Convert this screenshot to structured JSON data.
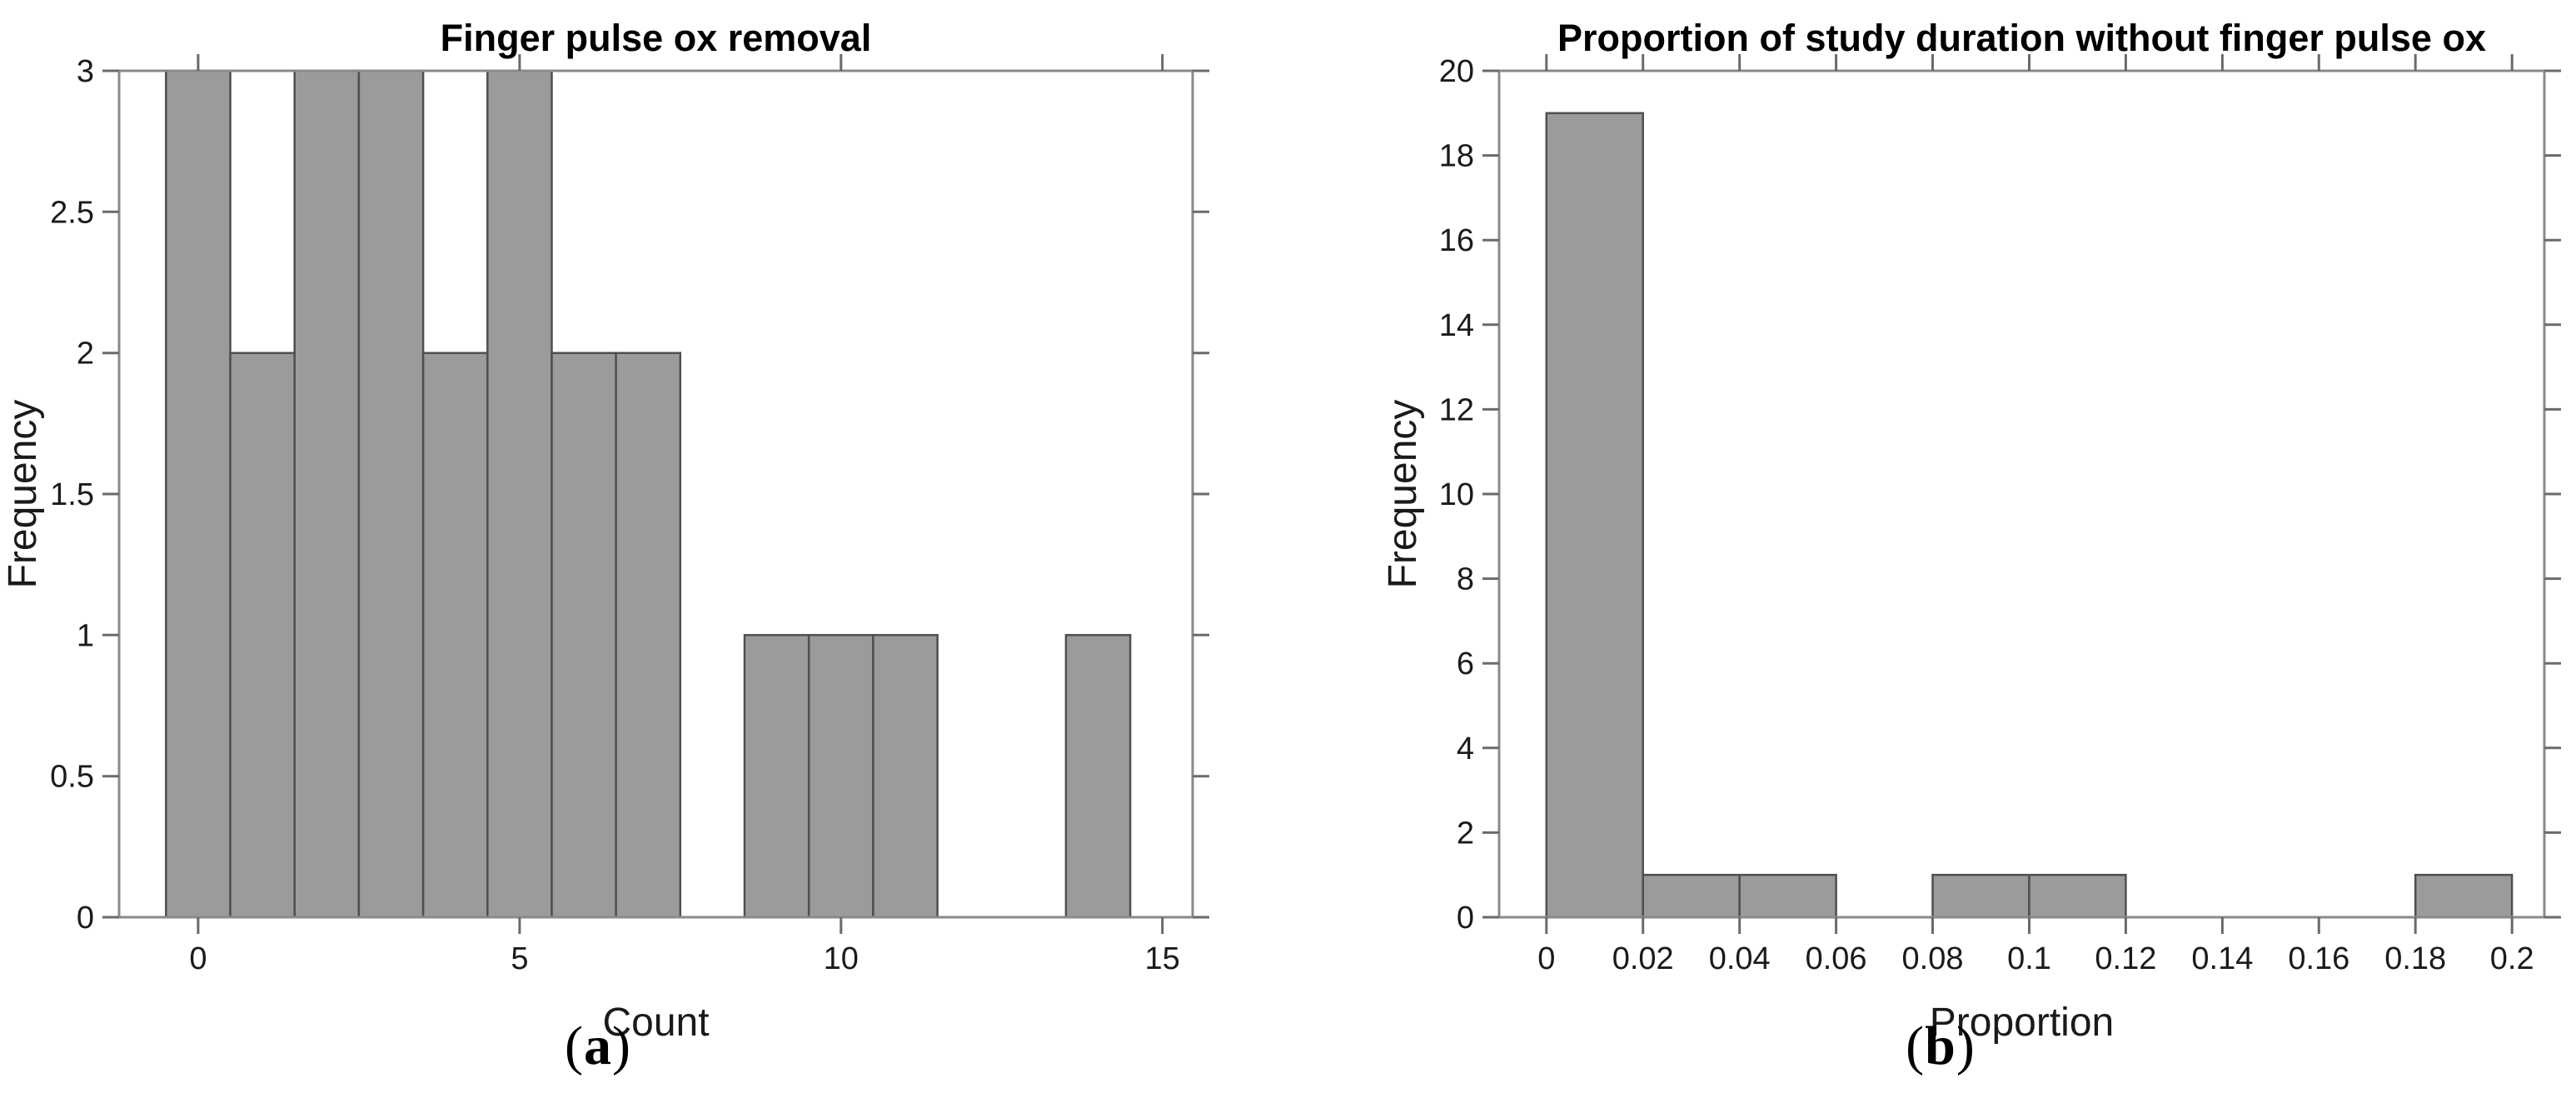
{
  "figure": {
    "background": "#ffffff",
    "panels": [
      {
        "label_open": "(",
        "label_letter": "a",
        "label_close": ")"
      },
      {
        "label_open": "(",
        "label_letter": "b",
        "label_close": ")"
      }
    ]
  },
  "chart_data": [
    {
      "type": "bar",
      "subtype": "histogram",
      "title": "Finger pulse ox removal",
      "xlabel": "Count",
      "ylabel": "Frequency",
      "bin_start": -0.5,
      "bin_width": 1,
      "values": [
        3,
        2,
        3,
        3,
        2,
        3,
        2,
        2,
        0,
        1,
        1,
        1,
        0,
        0,
        1
      ],
      "bin_centers": [
        0,
        1,
        2,
        3,
        4,
        5,
        6,
        7,
        8,
        9,
        10,
        11,
        12,
        13,
        14
      ],
      "xlim": [
        -1.23,
        15.47
      ],
      "ylim": [
        0,
        3
      ],
      "xticks": [
        0,
        5,
        10,
        15
      ],
      "xtick_labels": [
        "0",
        "5",
        "10",
        "15"
      ],
      "yticks": [
        0,
        0.5,
        1,
        1.5,
        2,
        2.5,
        3
      ],
      "ytick_labels": [
        "0",
        "0.5",
        "1",
        "1.5",
        "2",
        "2.5",
        "3"
      ],
      "grid": false,
      "legend": false,
      "box": true,
      "tick_direction": "out",
      "bar_fill": "#9b9b9b",
      "bar_edge": "#4f4f4f",
      "axis_color": "#8a8a8a",
      "tick_color": "#6a6a6a",
      "text_color": "#1a1a1a",
      "title_color": "#000000"
    },
    {
      "type": "bar",
      "subtype": "histogram",
      "title": "Proportion of study duration without finger pulse ox",
      "xlabel": "Proportion",
      "ylabel": "Frequency",
      "bin_start": 0,
      "bin_width": 0.02,
      "values": [
        19,
        1,
        1,
        0,
        1,
        1,
        0,
        0,
        0,
        1
      ],
      "bin_centers": [
        0.01,
        0.03,
        0.05,
        0.07,
        0.09,
        0.11,
        0.13,
        0.15,
        0.17,
        0.19
      ],
      "xlim": [
        -0.0098,
        0.2067
      ],
      "ylim": [
        0,
        20
      ],
      "xticks": [
        0,
        0.02,
        0.04,
        0.06,
        0.08,
        0.1,
        0.12,
        0.14,
        0.16,
        0.18,
        0.2
      ],
      "xtick_labels": [
        "0",
        "0.02",
        "0.04",
        "0.06",
        "0.08",
        "0.1",
        "0.12",
        "0.14",
        "0.16",
        "0.18",
        "0.2"
      ],
      "yticks": [
        0,
        2,
        4,
        6,
        8,
        10,
        12,
        14,
        16,
        18,
        20
      ],
      "ytick_labels": [
        "0",
        "2",
        "4",
        "6",
        "8",
        "10",
        "12",
        "14",
        "16",
        "18",
        "20"
      ],
      "grid": false,
      "legend": false,
      "box": true,
      "tick_direction": "out",
      "bar_fill": "#9b9b9b",
      "bar_edge": "#4f4f4f",
      "axis_color": "#8a8a8a",
      "tick_color": "#6a6a6a",
      "text_color": "#1a1a1a",
      "title_color": "#000000"
    }
  ]
}
